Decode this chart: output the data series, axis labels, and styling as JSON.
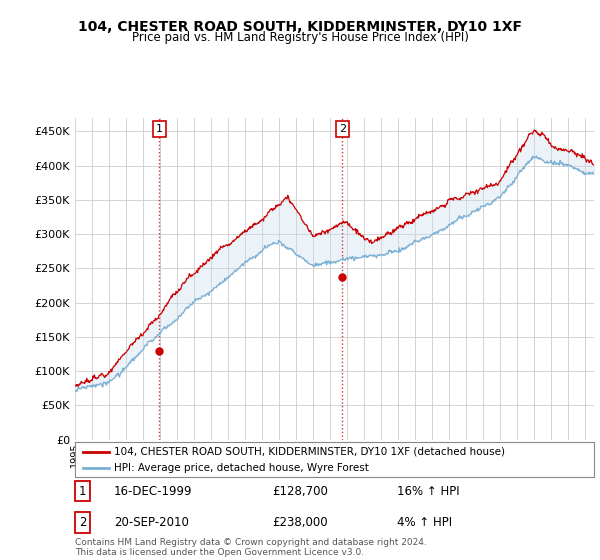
{
  "title": "104, CHESTER ROAD SOUTH, KIDDERMINSTER, DY10 1XF",
  "subtitle": "Price paid vs. HM Land Registry's House Price Index (HPI)",
  "yticks": [
    0,
    50000,
    100000,
    150000,
    200000,
    250000,
    300000,
    350000,
    400000,
    450000
  ],
  "ylim": [
    0,
    470000
  ],
  "legend_line1": "104, CHESTER ROAD SOUTH, KIDDERMINSTER, DY10 1XF (detached house)",
  "legend_line2": "HPI: Average price, detached house, Wyre Forest",
  "annotation1_date": "16-DEC-1999",
  "annotation1_price": "£128,700",
  "annotation1_hpi": "16% ↑ HPI",
  "annotation2_date": "20-SEP-2010",
  "annotation2_price": "£238,000",
  "annotation2_hpi": "4% ↑ HPI",
  "footer": "Contains HM Land Registry data © Crown copyright and database right 2024.\nThis data is licensed under the Open Government Licence v3.0.",
  "hpi_color": "#7bafd4",
  "price_color": "#cc0000",
  "fill_color": "#c8dff0",
  "background_color": "#ffffff",
  "grid_color": "#cccccc",
  "sale1_x": 1999.96,
  "sale1_y": 128700,
  "sale2_x": 2010.72,
  "sale2_y": 238000,
  "xmin": 1995.0,
  "xmax": 2025.5
}
